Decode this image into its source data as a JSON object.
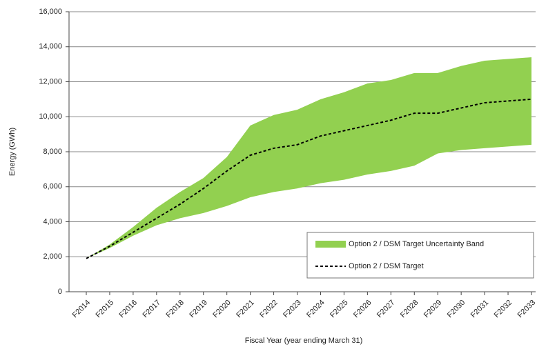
{
  "chart_data": {
    "type": "band-line",
    "ylabel": "Energy (GWh)",
    "xlabel": "Fiscal Year (year ending March 31)",
    "categories": [
      "F2014",
      "F2015",
      "F2016",
      "F2017",
      "F2018",
      "F2019",
      "F2020",
      "F2021",
      "F2022",
      "F2023",
      "F2024",
      "F2025",
      "F2026",
      "F2027",
      "F2028",
      "F2029",
      "F2030",
      "F2031",
      "F2032",
      "F2033"
    ],
    "series": [
      {
        "name": "Option 2 / DSM Target Uncertainty Band",
        "color": "#92d050",
        "type": "band",
        "lower": [
          1900,
          2500,
          3200,
          3800,
          4200,
          4500,
          4900,
          5400,
          5700,
          5900,
          6200,
          6400,
          6700,
          6900,
          7200,
          7900,
          8100,
          8200,
          8300,
          8400
        ],
        "upper": [
          1900,
          2700,
          3700,
          4800,
          5700,
          6500,
          7700,
          9500,
          10100,
          10400,
          11000,
          11400,
          11900,
          12100,
          12500,
          12500,
          12900,
          13200,
          13300,
          13400
        ]
      },
      {
        "name": "Option 2 / DSM Target",
        "color": "#000000",
        "type": "line",
        "dashed": true,
        "values": [
          1900,
          2600,
          3400,
          4200,
          5000,
          5900,
          6900,
          7800,
          8200,
          8400,
          8900,
          9200,
          9500,
          9800,
          10200,
          10200,
          10500,
          10800,
          10900,
          11000
        ]
      }
    ],
    "ylim": [
      0,
      16000
    ],
    "yticks": [
      0,
      {
        "value": 2000,
        "label": "2,000"
      },
      {
        "value": 4000,
        "label": "4,000"
      },
      {
        "value": 6000,
        "label": "6,000"
      },
      {
        "value": 8000,
        "label": "8,000"
      },
      {
        "value": 10000,
        "label": "10,000"
      },
      {
        "value": 12000,
        "label": "12,000"
      },
      {
        "value": 14000,
        "label": "14,000"
      },
      {
        "value": 16000,
        "label": "16,000"
      }
    ],
    "grid": true,
    "legend": "lower-right"
  }
}
